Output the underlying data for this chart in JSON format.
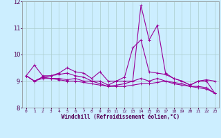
{
  "title": "",
  "xlabel": "Windchill (Refroidissement éolien,°C)",
  "ylabel": "",
  "background_color": "#cceeff",
  "line_color": "#990099",
  "grid_color": "#aacccc",
  "xlim": [
    -0.5,
    23.5
  ],
  "ylim": [
    8,
    12
  ],
  "yticks": [
    8,
    9,
    10,
    11,
    12
  ],
  "xtick_labels": [
    "0",
    "1",
    "2",
    "3",
    "4",
    "5",
    "6",
    "7",
    "8",
    "9",
    "10",
    "11",
    "12",
    "13",
    "14",
    "15",
    "16",
    "17",
    "18",
    "19",
    "20",
    "21",
    "22",
    "23"
  ],
  "series": [
    [
      9.2,
      9.6,
      9.2,
      9.2,
      9.3,
      9.5,
      9.35,
      9.3,
      9.1,
      9.35,
      9.0,
      9.0,
      9.0,
      9.0,
      11.85,
      10.55,
      11.1,
      9.3,
      9.1,
      9.0,
      8.85,
      9.0,
      9.05,
      9.0
    ],
    [
      9.2,
      9.0,
      9.15,
      9.2,
      9.25,
      9.3,
      9.2,
      9.15,
      9.0,
      9.0,
      8.85,
      9.0,
      9.15,
      10.25,
      10.55,
      9.35,
      9.3,
      9.25,
      9.1,
      9.0,
      8.85,
      9.0,
      9.0,
      8.55
    ],
    [
      9.2,
      9.0,
      9.15,
      9.1,
      9.1,
      9.05,
      9.1,
      9.0,
      9.0,
      8.9,
      8.8,
      8.85,
      8.9,
      9.0,
      9.1,
      9.0,
      9.1,
      9.0,
      8.95,
      8.9,
      8.8,
      8.8,
      8.75,
      8.55
    ],
    [
      9.2,
      9.0,
      9.1,
      9.1,
      9.05,
      9.0,
      9.0,
      8.95,
      8.9,
      8.85,
      8.8,
      8.8,
      8.8,
      8.85,
      8.9,
      8.9,
      8.95,
      9.0,
      8.9,
      8.85,
      8.8,
      8.75,
      8.7,
      8.55
    ]
  ],
  "figsize": [
    3.2,
    2.0
  ],
  "dpi": 100
}
